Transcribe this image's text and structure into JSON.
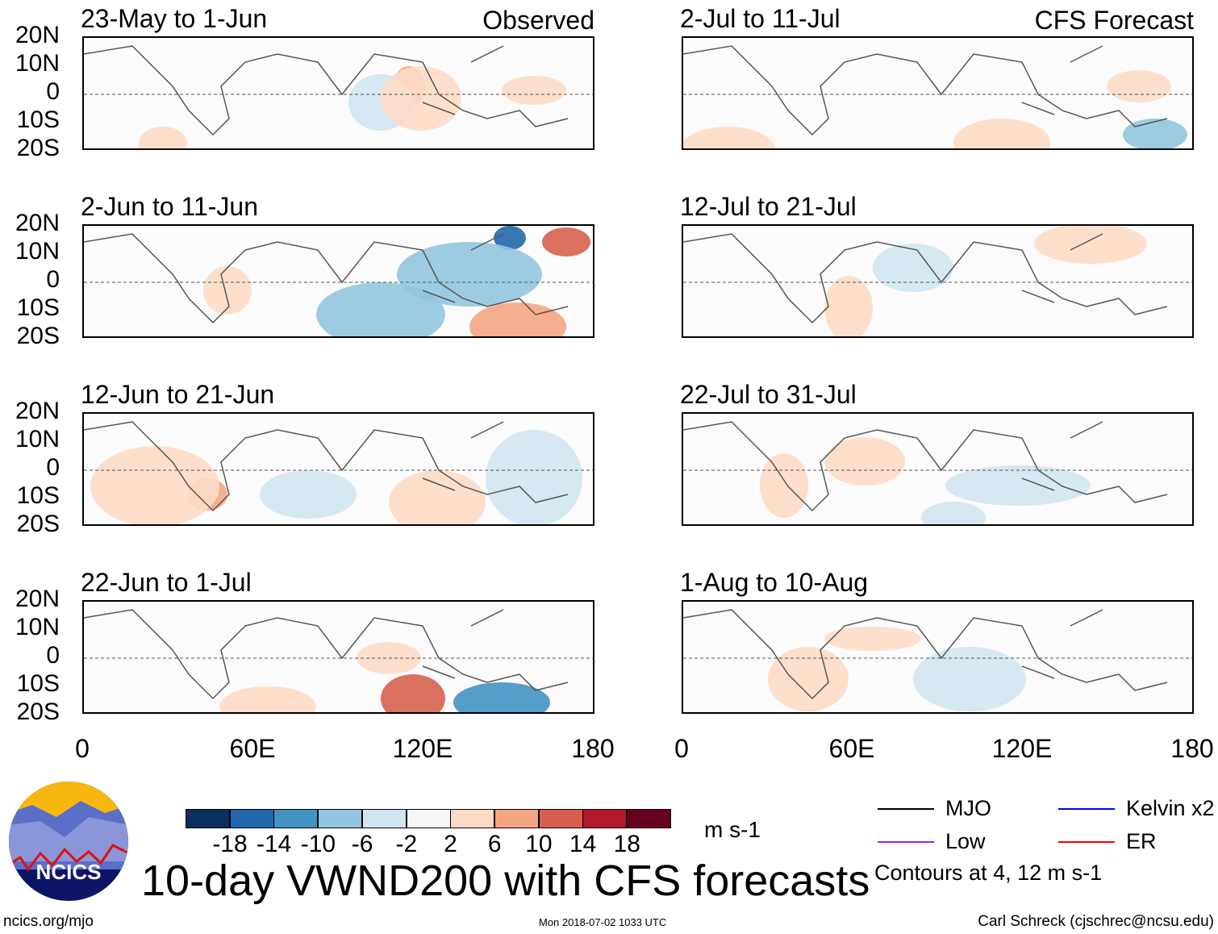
{
  "panels": [
    {
      "title": "23-May to 1-Jun",
      "label": "Observed"
    },
    {
      "title": "2-Jun to 11-Jun",
      "label": ""
    },
    {
      "title": "12-Jun to 21-Jun",
      "label": ""
    },
    {
      "title": "22-Jun to 1-Jul",
      "label": ""
    },
    {
      "title": "2-Jul to 11-Jul",
      "label": "CFS Forecast"
    },
    {
      "title": "12-Jul to 21-Jul",
      "label": ""
    },
    {
      "title": "22-Jul to 31-Jul",
      "label": ""
    },
    {
      "title": "1-Aug to 10-Aug",
      "label": ""
    }
  ],
  "y_ticks": [
    "20N",
    "10N",
    "0",
    "10S",
    "20S"
  ],
  "x_ticks": [
    "0",
    "60E",
    "120E",
    "180"
  ],
  "colorbar": {
    "colors": [
      "#0b2f5e",
      "#2267ad",
      "#4393c3",
      "#92c5de",
      "#d1e5f0",
      "#f7f7f7",
      "#fddbc7",
      "#f4a582",
      "#d6604d",
      "#b2182b",
      "#67001f"
    ],
    "labels": [
      "-18",
      "-14",
      "-10",
      "-6",
      "-2",
      "2",
      "6",
      "10",
      "14",
      "18"
    ],
    "units": "m s-1"
  },
  "title": "10-day VWND200 with CFS forecasts",
  "legend": {
    "items": [
      {
        "label": "MJO",
        "color": "#000000"
      },
      {
        "label": "Kelvin x2",
        "color": "#0000ff"
      },
      {
        "label": "Low",
        "color": "#a020f0"
      },
      {
        "label": "ER",
        "color": "#ff0000"
      }
    ],
    "note": "Contours at 4, 12 m s-1"
  },
  "logo_text": "NCICS",
  "footer": {
    "left": "ncics.org/mjo",
    "center": "Mon 2018-07-02 1033 UTC",
    "right": "Carl Schreck (cjschrec@ncsu.edu)"
  }
}
